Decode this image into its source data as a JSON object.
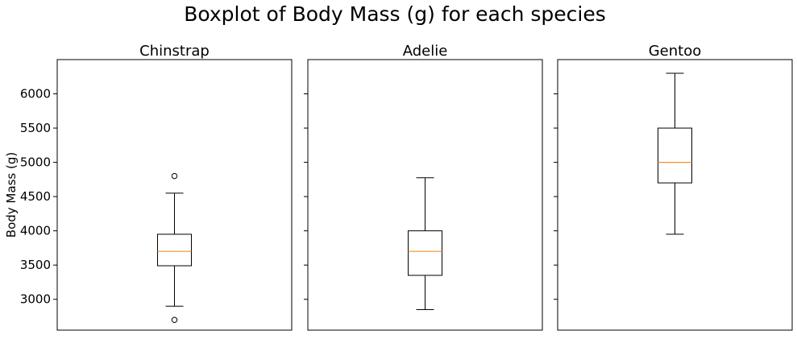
{
  "chart_data": {
    "type": "boxplot",
    "title": "Boxplot of Body Mass (g) for each species",
    "ylabel": "Body Mass (g)",
    "ylim": [
      2550,
      6500
    ],
    "yticks": [
      3000,
      3500,
      4000,
      4500,
      5000,
      5500,
      6000
    ],
    "shared_y": true,
    "median_color": "#f28e2b",
    "panels": [
      {
        "title": "Chinstrap",
        "whisker_low": 2900,
        "q1": 3490,
        "median": 3700,
        "q3": 3950,
        "whisker_high": 4550,
        "fliers": [
          4800,
          2700
        ]
      },
      {
        "title": "Adelie",
        "whisker_low": 2850,
        "q1": 3350,
        "median": 3700,
        "q3": 4000,
        "whisker_high": 4775,
        "fliers": []
      },
      {
        "title": "Gentoo",
        "whisker_low": 3950,
        "q1": 4700,
        "median": 5000,
        "q3": 5500,
        "whisker_high": 6300,
        "fliers": []
      }
    ]
  }
}
